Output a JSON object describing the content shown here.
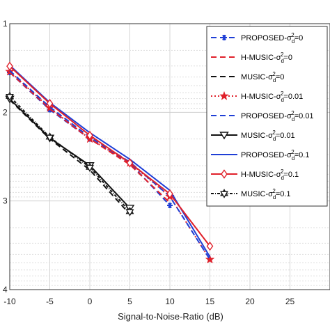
{
  "chart_data": {
    "type": "line",
    "title": "",
    "xlabel": "Signal-to-Noise-Ratio (dB)",
    "ylabel": "",
    "xlim": [
      -10,
      30
    ],
    "ylim": [
      1,
      4
    ],
    "y_reversed": true,
    "grid": true,
    "legend_position": "top-right",
    "x_ticks": [
      "-10",
      "-5",
      "0",
      "5",
      "10",
      "15",
      "20",
      "25"
    ],
    "y_ticks": [
      "1",
      "2",
      "3",
      "4"
    ],
    "series": [
      {
        "name": "PROPOSED-σd2=0",
        "legend_main": "PROPOSED-σ",
        "legend_sub": "d",
        "legend_sup": "2",
        "legend_tail": "=0",
        "color": "#1f3fd6",
        "dash": "8,5",
        "marker": "asterisk",
        "x": [
          -10,
          -5,
          0,
          5,
          10
        ],
        "y": [
          1.55,
          1.97,
          2.3,
          2.57,
          3.05
        ]
      },
      {
        "name": "H-MUSIC-σd2=0",
        "legend_main": "H-MUSIC-σ",
        "legend_sub": "d",
        "legend_sup": "2",
        "legend_tail": "=0",
        "color": "#e0202a",
        "dash": "8,5",
        "marker": "none",
        "x": [
          -10,
          -5,
          0,
          5,
          10
        ],
        "y": [
          1.55,
          1.96,
          2.3,
          2.59,
          3.02
        ]
      },
      {
        "name": "MUSIC-σd2=0",
        "legend_main": "MUSIC-σ",
        "legend_sub": "d",
        "legend_sup": "2",
        "legend_tail": "=0",
        "color": "#111111",
        "dash": "8,5",
        "marker": "none",
        "x": [
          -10,
          -5,
          0,
          5
        ],
        "y": [
          1.86,
          2.3,
          2.65,
          3.15
        ]
      },
      {
        "name": "H-MUSIC-σd2=0.01",
        "legend_main": "H-MUSIC-σ",
        "legend_sub": "d",
        "legend_sup": "2",
        "legend_tail": "=0.01",
        "color": "#e0202a",
        "dash": "2,3",
        "marker": "star",
        "x": [
          -10,
          -5,
          0,
          5,
          10,
          15
        ],
        "y": [
          1.54,
          1.95,
          2.3,
          2.57,
          2.95,
          3.66
        ]
      },
      {
        "name": "PROPOSED-σd2=0.01",
        "legend_main": "PROPOSED-σ",
        "legend_sub": "d",
        "legend_sup": "2",
        "legend_tail": "=0.01",
        "color": "#1f3fd6",
        "dash": "8,5",
        "marker": "none",
        "x": [
          -10,
          -5,
          0,
          5,
          10,
          15
        ],
        "y": [
          1.53,
          1.94,
          2.28,
          2.56,
          2.95,
          3.66
        ]
      },
      {
        "name": "MUSIC-σd2=0.01",
        "legend_main": "MUSIC-σ",
        "legend_sub": "d",
        "legend_sup": "2",
        "legend_tail": "=0.01",
        "color": "#111111",
        "dash": "",
        "marker": "triangle-down",
        "x": [
          -10,
          -5,
          0,
          5
        ],
        "y": [
          1.85,
          2.29,
          2.6,
          3.08
        ]
      },
      {
        "name": "PROPOSED-σd2=0.1",
        "legend_main": "PROPOSED-σ",
        "legend_sub": "d",
        "legend_sup": "2",
        "legend_tail": "=0.1",
        "color": "#1f3fd6",
        "dash": "",
        "marker": "none",
        "x": [
          -10,
          -5,
          0,
          5,
          10,
          15
        ],
        "y": [
          1.47,
          1.89,
          2.23,
          2.53,
          2.88,
          3.63
        ]
      },
      {
        "name": "H-MUSIC-σd2=0.1",
        "legend_main": "H-MUSIC-σ",
        "legend_sub": "d",
        "legend_sup": "2",
        "legend_tail": "=0.1",
        "color": "#e0202a",
        "dash": "",
        "marker": "diamond",
        "x": [
          -10,
          -5,
          0,
          5,
          10,
          15
        ],
        "y": [
          1.48,
          1.9,
          2.26,
          2.57,
          2.92,
          3.51
        ]
      },
      {
        "name": "MUSIC-σd2=0.1",
        "legend_main": "MUSIC-σ",
        "legend_sub": "d",
        "legend_sup": "2",
        "legend_tail": "=0.1",
        "color": "#111111",
        "dash": "4,2,1,2",
        "marker": "hexstar",
        "x": [
          -10,
          -5,
          0,
          5
        ],
        "y": [
          1.82,
          2.28,
          2.62,
          3.12
        ]
      }
    ]
  }
}
